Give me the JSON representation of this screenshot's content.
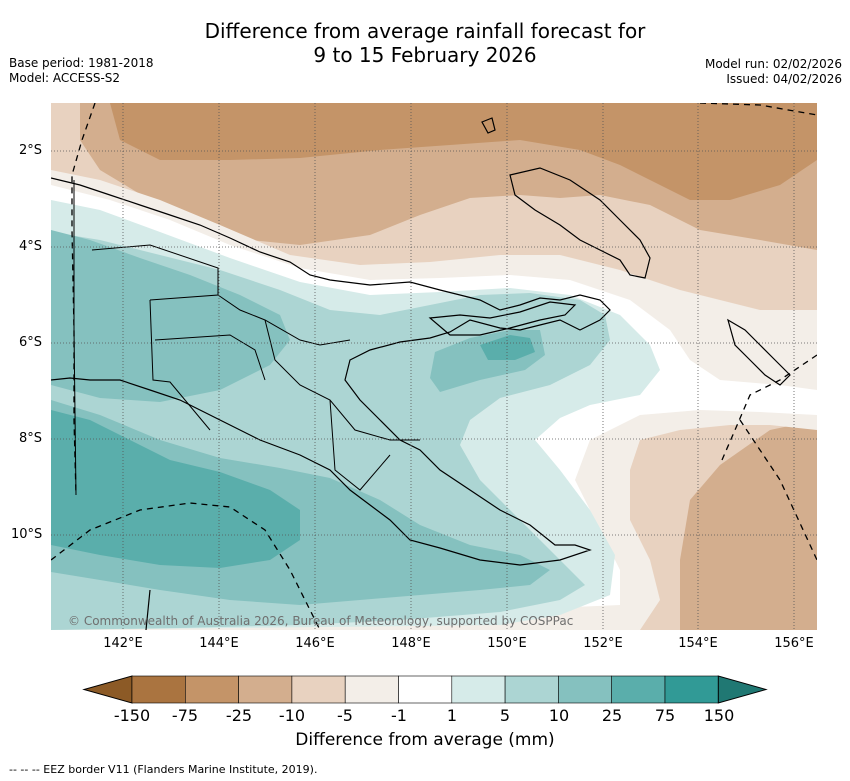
{
  "title": {
    "line1": "Difference from average rainfall forecast for",
    "line2": "9 to 15 February 2026"
  },
  "meta_left": {
    "base_period": "Base period: 1981-2018",
    "model": "Model: ACCESS-S2"
  },
  "meta_right": {
    "model_run": "Model run: 02/02/2026",
    "issued": "Issued: 04/02/2026"
  },
  "map": {
    "lat_labels": [
      "2°S",
      "4°S",
      "6°S",
      "8°S",
      "10°S"
    ],
    "lon_labels": [
      "142°E",
      "144°E",
      "146°E",
      "148°E",
      "150°E",
      "152°E",
      "154°E",
      "156°E"
    ],
    "copyright": "© Commonwealth of Australia 2026, Bureau of Meteorology, supported by COSPPac"
  },
  "colorbar": {
    "tick_labels": [
      "-150",
      "-75",
      "-25",
      "-10",
      "-5",
      "-1",
      "1",
      "5",
      "10",
      "25",
      "75",
      "150"
    ],
    "colors": [
      "#8c5a26",
      "#aa7440",
      "#c49468",
      "#d3ae8e",
      "#e8d2c0",
      "#f3eee8",
      "#ffffff",
      "#d6ebe9",
      "#acd5d3",
      "#85c1bf",
      "#5aaeab",
      "#319a96",
      "#207873"
    ],
    "title": "Difference from average (mm)"
  },
  "legend_note": "--  --  -- EEZ border V11 (Flanders Marine Institute, 2019)."
}
